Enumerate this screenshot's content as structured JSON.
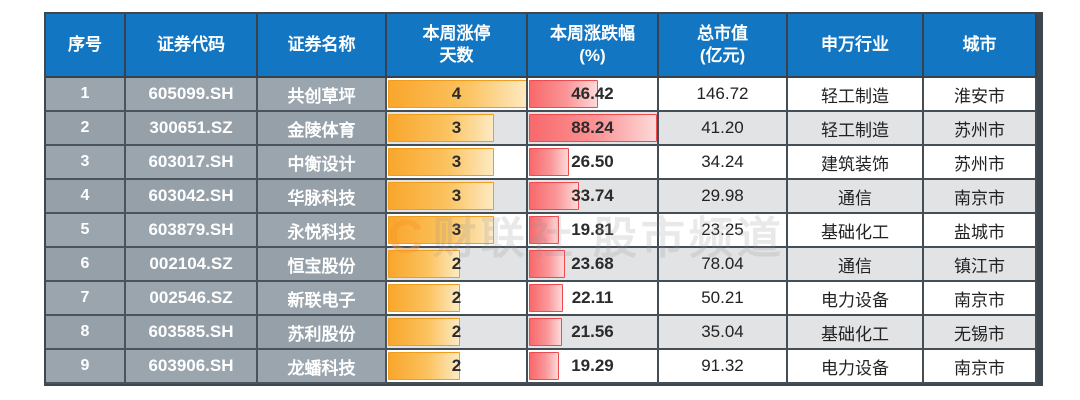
{
  "colors": {
    "header_bg": "#1276c2",
    "header_text": "#ffffff",
    "left_cols_bg": "#9aa5ae",
    "alt_row_bg": "#e2e3e5",
    "grid_border": "#454d55",
    "days_bar": "#f9a62c",
    "chg_bar": "#f8696b",
    "watermark_orange": "#f69628"
  },
  "watermark": {
    "logo": "C",
    "text": "财联社 股市频道"
  },
  "chart_data": {
    "type": "table",
    "title": "",
    "columns": [
      "序号",
      "证券代码",
      "证券名称",
      "本周涨停\n天数",
      "本周涨跌幅\n(%)",
      "总市值\n(亿元)",
      "申万行业",
      "城市"
    ],
    "bar_columns": {
      "days_max": 4,
      "chg_max": 88.24
    },
    "rows": [
      {
        "seq": "1",
        "code": "605099.SH",
        "name": "共创草坪",
        "days": 4,
        "chg": "46.42",
        "chg_val": 46.42,
        "cap": "146.72",
        "industry": "轻工制造",
        "city": "淮安市"
      },
      {
        "seq": "2",
        "code": "300651.SZ",
        "name": "金陵体育",
        "days": 3,
        "chg": "88.24",
        "chg_val": 88.24,
        "cap": "41.20",
        "industry": "轻工制造",
        "city": "苏州市"
      },
      {
        "seq": "3",
        "code": "603017.SH",
        "name": "中衡设计",
        "days": 3,
        "chg": "26.50",
        "chg_val": 26.5,
        "cap": "34.24",
        "industry": "建筑装饰",
        "city": "苏州市"
      },
      {
        "seq": "4",
        "code": "603042.SH",
        "name": "华脉科技",
        "days": 3,
        "chg": "33.74",
        "chg_val": 33.74,
        "cap": "29.98",
        "industry": "通信",
        "city": "南京市"
      },
      {
        "seq": "5",
        "code": "603879.SH",
        "name": "永悦科技",
        "days": 3,
        "chg": "19.81",
        "chg_val": 19.81,
        "cap": "23.25",
        "industry": "基础化工",
        "city": "盐城市"
      },
      {
        "seq": "6",
        "code": "002104.SZ",
        "name": "恒宝股份",
        "days": 2,
        "chg": "23.68",
        "chg_val": 23.68,
        "cap": "78.04",
        "industry": "通信",
        "city": "镇江市"
      },
      {
        "seq": "7",
        "code": "002546.SZ",
        "name": "新联电子",
        "days": 2,
        "chg": "22.11",
        "chg_val": 22.11,
        "cap": "50.21",
        "industry": "电力设备",
        "city": "南京市"
      },
      {
        "seq": "8",
        "code": "603585.SH",
        "name": "苏利股份",
        "days": 2,
        "chg": "21.56",
        "chg_val": 21.56,
        "cap": "35.04",
        "industry": "基础化工",
        "city": "无锡市"
      },
      {
        "seq": "9",
        "code": "603906.SH",
        "name": "龙蟠科技",
        "days": 2,
        "chg": "19.29",
        "chg_val": 19.29,
        "cap": "91.32",
        "industry": "电力设备",
        "city": "南京市"
      }
    ]
  }
}
